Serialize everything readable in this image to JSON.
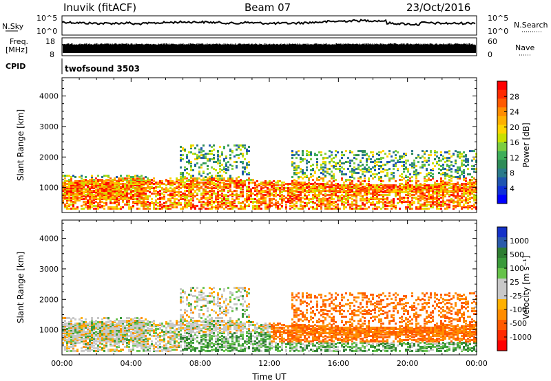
{
  "header": {
    "station": "Inuvik (fitACF)",
    "beam": "Beam 07",
    "date": "23/Oct/2016"
  },
  "noise_panel": {
    "left_label": "N.Sky",
    "right_label": "N.Search",
    "y_ticks": [
      "10^5",
      "10^0"
    ]
  },
  "freq_panel": {
    "left_label_line1": "Freq.",
    "left_label_line2": "[MHz]",
    "left_ticks": [
      "18",
      "8"
    ],
    "right_label": "Nave",
    "right_ticks": [
      "60",
      "0"
    ]
  },
  "cpid_panel": {
    "label": "CPID",
    "value": "twofsound 3503"
  },
  "chart_data": [
    {
      "type": "heatmap",
      "title": "",
      "ylabel": "Slant Range [km]",
      "xlabel": "",
      "ylim": [
        180,
        4600
      ],
      "y_ticks": [
        "4000",
        "3000",
        "2000",
        "1000"
      ],
      "colorbar": {
        "label": "Power [dB]",
        "ticks": [
          "28",
          "24",
          "20",
          "16",
          "12",
          "8",
          "4"
        ],
        "colors": [
          "#ff0000",
          "#ff2a00",
          "#ff5a00",
          "#ff8c00",
          "#ffb000",
          "#ffd400",
          "#c8e000",
          "#7ccd40",
          "#3fae5a",
          "#2e8b57",
          "#2a7a8a",
          "#1f55b0",
          "#1030d8",
          "#0000ff"
        ]
      }
    },
    {
      "type": "heatmap",
      "title": "",
      "ylabel": "Slant Range [km]",
      "xlabel": "Time UT",
      "ylim": [
        180,
        4600
      ],
      "y_ticks": [
        "4000",
        "3000",
        "2000",
        "1000"
      ],
      "x_ticks": [
        "00:00",
        "04:00",
        "08:00",
        "12:00",
        "16:00",
        "20:00",
        "00:00"
      ],
      "colorbar": {
        "label": "Velocity [m s⁻¹]",
        "ticks": [
          "1000",
          "500",
          "100",
          "25",
          "-25",
          "-100",
          "-500",
          "-1000"
        ],
        "colors": [
          "#1432c8",
          "#2a5aaa",
          "#2e7d32",
          "#3a9a3a",
          "#66c24a",
          "#c8c8c8",
          "#c8c8c8",
          "#ffb000",
          "#ff8c00",
          "#ff5a00",
          "#ff2a00",
          "#ff0000"
        ]
      }
    }
  ]
}
